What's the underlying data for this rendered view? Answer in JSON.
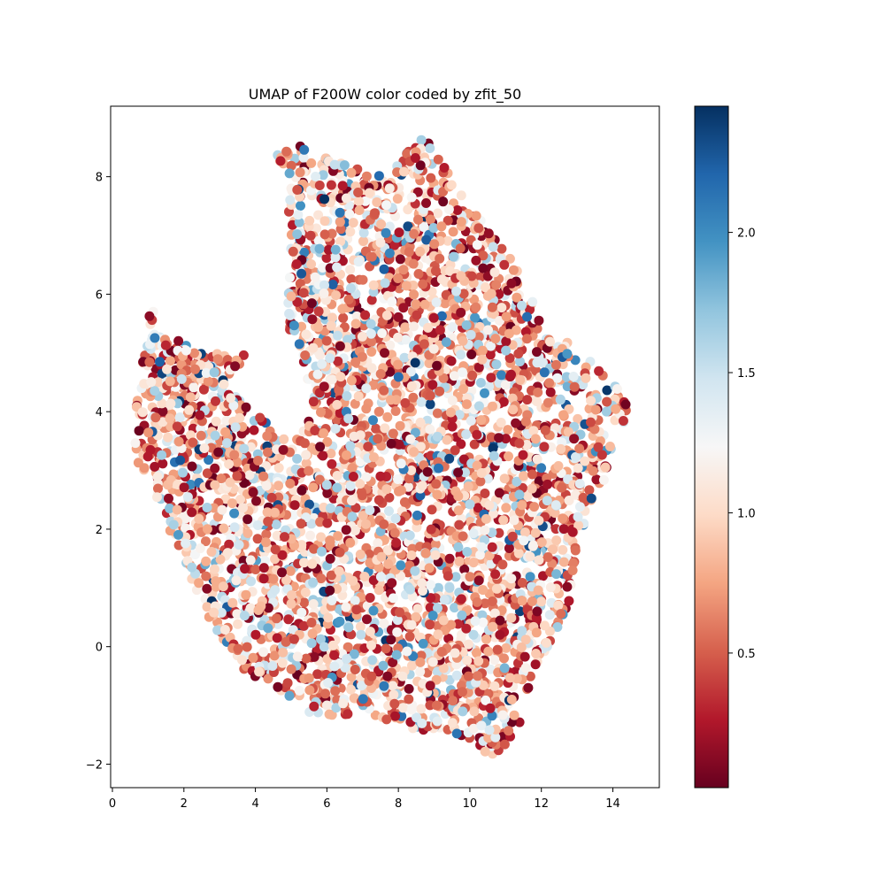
{
  "chart_data": {
    "type": "scatter",
    "title": "UMAP of F200W color coded by zfit_50",
    "xlabel": "",
    "ylabel": "",
    "xlim": [
      -0.05,
      15.3
    ],
    "ylim": [
      -2.4,
      9.2
    ],
    "x_ticks": [
      {
        "value": 0,
        "label": "0"
      },
      {
        "value": 2,
        "label": "2"
      },
      {
        "value": 4,
        "label": "4"
      },
      {
        "value": 6,
        "label": "6"
      },
      {
        "value": 8,
        "label": "8"
      },
      {
        "value": 10,
        "label": "10"
      },
      {
        "value": 12,
        "label": "12"
      },
      {
        "value": 14,
        "label": "14"
      }
    ],
    "y_ticks": [
      {
        "value": -2,
        "label": "−2"
      },
      {
        "value": 0,
        "label": "0"
      },
      {
        "value": 2,
        "label": "2"
      },
      {
        "value": 4,
        "label": "4"
      },
      {
        "value": 6,
        "label": "6"
      },
      {
        "value": 8,
        "label": "8"
      }
    ],
    "grid": false,
    "colorbar": {
      "label": "",
      "colormap": "RdBu",
      "range": [
        0.02,
        2.45
      ],
      "ticks": [
        {
          "value": 0.5,
          "label": "0.5"
        },
        {
          "value": 1.0,
          "label": "1.0"
        },
        {
          "value": 1.5,
          "label": "1.5"
        },
        {
          "value": 2.0,
          "label": "2.0"
        }
      ]
    },
    "region_outline": [
      [
        1.0,
        5.9
      ],
      [
        1.3,
        5.5
      ],
      [
        2.0,
        5.2
      ],
      [
        2.6,
        5.0
      ],
      [
        3.1,
        5.0
      ],
      [
        3.6,
        5.1
      ],
      [
        3.8,
        4.9
      ],
      [
        3.2,
        4.6
      ],
      [
        3.1,
        4.3
      ],
      [
        3.7,
        4.3
      ],
      [
        4.1,
        4.0
      ],
      [
        4.6,
        3.7
      ],
      [
        5.3,
        3.6
      ],
      [
        5.6,
        4.1
      ],
      [
        5.4,
        4.6
      ],
      [
        5.0,
        5.1
      ],
      [
        4.9,
        5.9
      ],
      [
        5.0,
        6.6
      ],
      [
        4.9,
        7.3
      ],
      [
        4.9,
        7.9
      ],
      [
        4.5,
        8.5
      ],
      [
        5.0,
        8.6
      ],
      [
        5.7,
        8.4
      ],
      [
        6.5,
        8.2
      ],
      [
        7.2,
        8.1
      ],
      [
        7.7,
        8.0
      ],
      [
        8.2,
        8.4
      ],
      [
        8.7,
        8.7
      ],
      [
        9.4,
        8.1
      ],
      [
        9.9,
        7.6
      ],
      [
        10.6,
        7.1
      ],
      [
        11.2,
        6.6
      ],
      [
        11.6,
        6.1
      ],
      [
        12.1,
        5.4
      ],
      [
        12.7,
        5.2
      ],
      [
        13.4,
        4.9
      ],
      [
        14.0,
        4.6
      ],
      [
        14.5,
        4.2
      ],
      [
        14.2,
        3.6
      ],
      [
        13.9,
        3.0
      ],
      [
        13.4,
        2.2
      ],
      [
        13.0,
        1.6
      ],
      [
        12.8,
        0.8
      ],
      [
        12.4,
        0.2
      ],
      [
        11.9,
        -0.3
      ],
      [
        11.6,
        -0.9
      ],
      [
        11.3,
        -1.5
      ],
      [
        10.8,
        -1.9
      ],
      [
        10.1,
        -1.7
      ],
      [
        9.2,
        -1.5
      ],
      [
        8.3,
        -1.4
      ],
      [
        7.4,
        -1.3
      ],
      [
        6.4,
        -1.2
      ],
      [
        5.4,
        -1.1
      ],
      [
        4.5,
        -0.7
      ],
      [
        3.7,
        -0.4
      ],
      [
        3.0,
        0.2
      ],
      [
        2.4,
        0.8
      ],
      [
        2.0,
        1.5
      ],
      [
        1.5,
        2.1
      ],
      [
        1.0,
        2.7
      ],
      [
        0.6,
        3.3
      ],
      [
        0.6,
        3.9
      ],
      [
        0.8,
        4.5
      ],
      [
        0.9,
        5.2
      ]
    ],
    "point_count": 4200,
    "value_distribution": [
      {
        "range": [
          0.02,
          0.45
        ],
        "share": 0.2
      },
      {
        "range": [
          0.45,
          0.9
        ],
        "share": 0.34
      },
      {
        "range": [
          0.9,
          1.2
        ],
        "share": 0.22
      },
      {
        "range": [
          1.2,
          1.7
        ],
        "share": 0.18
      },
      {
        "range": [
          1.7,
          2.45
        ],
        "share": 0.06
      }
    ]
  }
}
